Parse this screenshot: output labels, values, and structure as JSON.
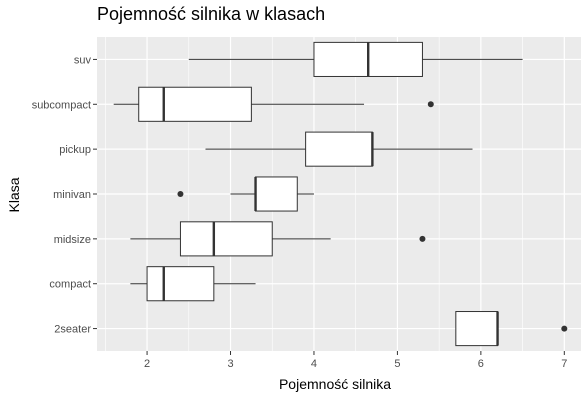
{
  "chart_data": {
    "type": "boxplot",
    "title": "Pojemność silnika w klasach",
    "xlabel": "Pojemność silnika",
    "ylabel": "Klasa",
    "xlim": [
      1.4,
      7.2
    ],
    "x_ticks": [
      2,
      3,
      4,
      5,
      6,
      7
    ],
    "orientation": "horizontal",
    "grid": true,
    "colors": {
      "panel": "#ebebeb",
      "grid": "#ffffff",
      "box_fill": "#ffffff",
      "box_line": "#333333",
      "tick_text": "#4d4d4d"
    },
    "categories": [
      "suv",
      "subcompact",
      "pickup",
      "minivan",
      "midsize",
      "compact",
      "2seater"
    ],
    "boxes": [
      {
        "category": "suv",
        "min": 2.5,
        "q1": 4.0,
        "median": 4.65,
        "q3": 5.3,
        "max": 6.5,
        "outliers": []
      },
      {
        "category": "subcompact",
        "min": 1.6,
        "q1": 1.9,
        "median": 2.2,
        "q3": 3.25,
        "max": 4.6,
        "outliers": [
          5.4
        ]
      },
      {
        "category": "pickup",
        "min": 2.7,
        "q1": 3.9,
        "median": 4.7,
        "q3": 4.7,
        "max": 5.9,
        "outliers": []
      },
      {
        "category": "minivan",
        "min": 3.0,
        "q1": 3.3,
        "median": 3.3,
        "q3": 3.8,
        "max": 4.0,
        "outliers": [
          2.4
        ]
      },
      {
        "category": "midsize",
        "min": 1.8,
        "q1": 2.4,
        "median": 2.8,
        "q3": 3.5,
        "max": 4.2,
        "outliers": [
          5.3
        ]
      },
      {
        "category": "compact",
        "min": 1.8,
        "q1": 2.0,
        "median": 2.2,
        "q3": 2.8,
        "max": 3.3,
        "outliers": []
      },
      {
        "category": "2seater",
        "min": 5.7,
        "q1": 5.7,
        "median": 6.2,
        "q3": 6.2,
        "max": 6.2,
        "outliers": [
          7.0
        ]
      }
    ]
  }
}
